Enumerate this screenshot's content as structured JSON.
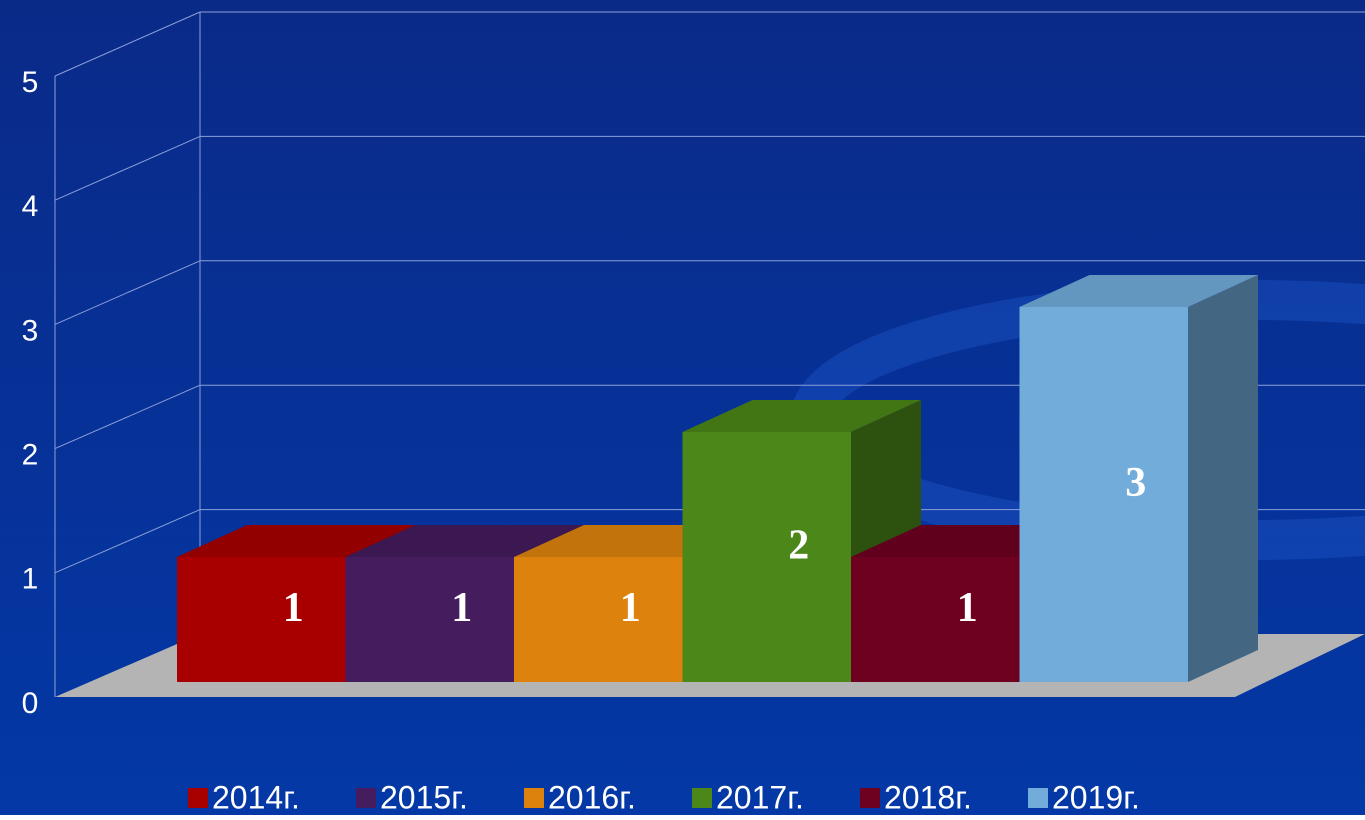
{
  "chart_data": {
    "type": "bar",
    "categories": [
      null
    ],
    "series": [
      {
        "name": "2014г.",
        "color": "#a80000",
        "values": [
          1
        ]
      },
      {
        "name": "2015г.",
        "color": "#451c5e",
        "values": [
          1
        ]
      },
      {
        "name": "2016г.",
        "color": "#dd830d",
        "values": [
          1
        ]
      },
      {
        "name": "2017г.",
        "color": "#4c8719",
        "values": [
          2
        ]
      },
      {
        "name": "2018г.",
        "color": "#6e0020",
        "values": [
          1
        ]
      },
      {
        "name": "2019г.",
        "color": "#71acda",
        "values": [
          3
        ]
      }
    ],
    "ylim": [
      0,
      5
    ],
    "yticks": [
      0,
      1,
      2,
      3,
      4,
      5
    ],
    "grid": true,
    "legend": "bottom"
  }
}
